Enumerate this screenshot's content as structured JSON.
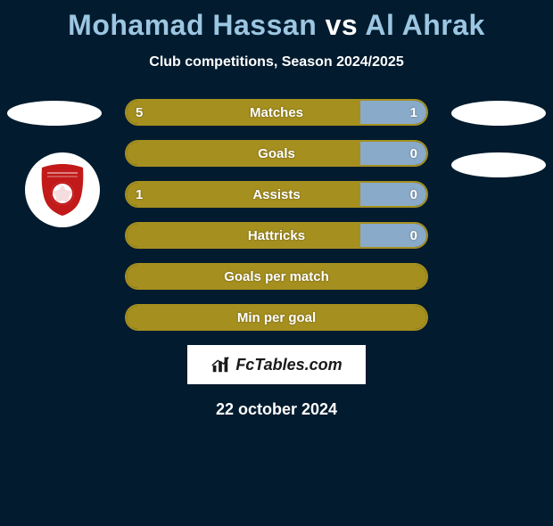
{
  "title": {
    "player1": "Mohamad Hassan",
    "vs": "vs",
    "player2": "Al Ahrak"
  },
  "subtitle": "Club competitions, Season 2024/2025",
  "colors": {
    "p1_fill": "#a58f1f",
    "p2_fill": "#89aac8",
    "row_border": "#a58f1f",
    "background": "#021b2e",
    "badge_primary": "#c21a1a",
    "badge_bg": "#ffffff"
  },
  "rows": [
    {
      "label": "Matches",
      "left_val": "5",
      "right_val": "1",
      "left_pct": 78,
      "right_pct": 22
    },
    {
      "label": "Goals",
      "left_val": "",
      "right_val": "0",
      "left_pct": 78,
      "right_pct": 22
    },
    {
      "label": "Assists",
      "left_val": "1",
      "right_val": "0",
      "left_pct": 78,
      "right_pct": 22
    },
    {
      "label": "Hattricks",
      "left_val": "",
      "right_val": "0",
      "left_pct": 78,
      "right_pct": 22
    },
    {
      "label": "Goals per match",
      "left_val": "",
      "right_val": "",
      "left_pct": 100,
      "right_pct": 0
    },
    {
      "label": "Min per goal",
      "left_val": "",
      "right_val": "",
      "left_pct": 100,
      "right_pct": 0
    }
  ],
  "fctables_text": "FcTables.com",
  "date": "22 october 2024"
}
